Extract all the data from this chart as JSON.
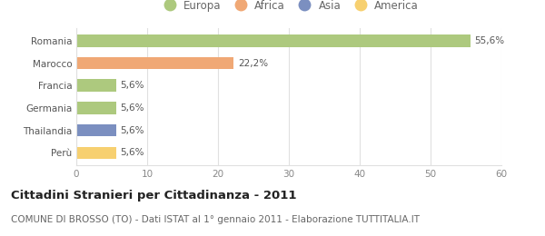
{
  "categories": [
    "Romania",
    "Marocco",
    "Francia",
    "Germania",
    "Thailandia",
    "Perù"
  ],
  "values": [
    55.6,
    22.2,
    5.6,
    5.6,
    5.6,
    5.6
  ],
  "bar_colors": [
    "#adc97e",
    "#f0a875",
    "#adc97e",
    "#adc97e",
    "#7b8fc0",
    "#f7d070"
  ],
  "labels": [
    "55,6%",
    "22,2%",
    "5,6%",
    "5,6%",
    "5,6%",
    "5,6%"
  ],
  "legend_labels": [
    "Europa",
    "Africa",
    "Asia",
    "America"
  ],
  "legend_colors": [
    "#adc97e",
    "#f0a875",
    "#7b8fc0",
    "#f7d070"
  ],
  "title": "Cittadini Stranieri per Cittadinanza - 2011",
  "subtitle": "COMUNE DI BROSSO (TO) - Dati ISTAT al 1° gennaio 2011 - Elaborazione TUTTITALIA.IT",
  "xlim": [
    0,
    60
  ],
  "xticks": [
    0,
    10,
    20,
    30,
    40,
    50,
    60
  ],
  "background_color": "#ffffff",
  "plot_bg_color": "#ffffff",
  "grid_color": "#e0e0e0",
  "title_fontsize": 9.5,
  "subtitle_fontsize": 7.5,
  "label_fontsize": 7.5,
  "tick_fontsize": 7.5,
  "legend_fontsize": 8.5
}
